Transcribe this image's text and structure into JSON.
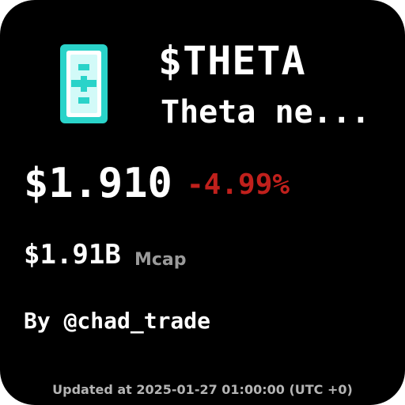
{
  "token": {
    "icon": "theta-token-logo-icon",
    "ticker": "$THETA",
    "name": "Theta ne..."
  },
  "price": {
    "value": "$1.910",
    "change": "-4.99%"
  },
  "market_cap": {
    "value": "$1.91B",
    "label": "Mcap"
  },
  "author": "By @chad_trade",
  "updated": "Updated at 2025-01-27 01:00:00 (UTC +0)",
  "colors": {
    "background": "#000000",
    "text": "#ffffff",
    "negative_change": "#c0201c",
    "muted_label": "#9a9a9a",
    "footer": "#b4b4b4",
    "logo_teal": "#2ad3c9",
    "logo_cyan": "#58e7e0"
  }
}
